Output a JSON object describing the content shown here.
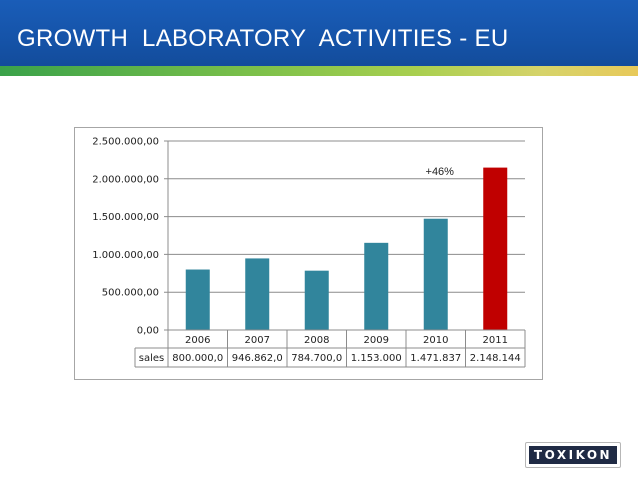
{
  "slide": {
    "title": "GROWTH  LABORATORY  ACTIVITIES - EU",
    "logo_text": "TOXIKON"
  },
  "colors": {
    "header": "#1553a8",
    "bar": "#31859c",
    "bar_highlight": "#c00000"
  },
  "chart_data": {
    "type": "bar",
    "title": "",
    "xlabel": "",
    "ylabel": "",
    "categories": [
      "2006",
      "2007",
      "2008",
      "2009",
      "2010",
      "2011"
    ],
    "series": [
      {
        "name": "sales",
        "values": [
          800000.0,
          946862.0,
          784700.0,
          1153000,
          1471837,
          2148144
        ]
      }
    ],
    "table_row_label": "sales",
    "table_cells": [
      "800.000,0",
      "946.862,0",
      "784.700,0",
      "1.153.000",
      "1.471.837",
      "2.148.144"
    ],
    "ylim": [
      0,
      2500000
    ],
    "yticks": [
      0,
      500000,
      1000000,
      1500000,
      2000000,
      2500000
    ],
    "ytick_labels": [
      "0,00",
      "500.000,00",
      "1.000.000,00",
      "1.500.000,00",
      "2.000.000,00",
      "2.500.000,00"
    ],
    "highlight_index": 5,
    "annotation": {
      "text": "+46%",
      "category": "2010"
    },
    "grid": true,
    "legend": "none"
  }
}
